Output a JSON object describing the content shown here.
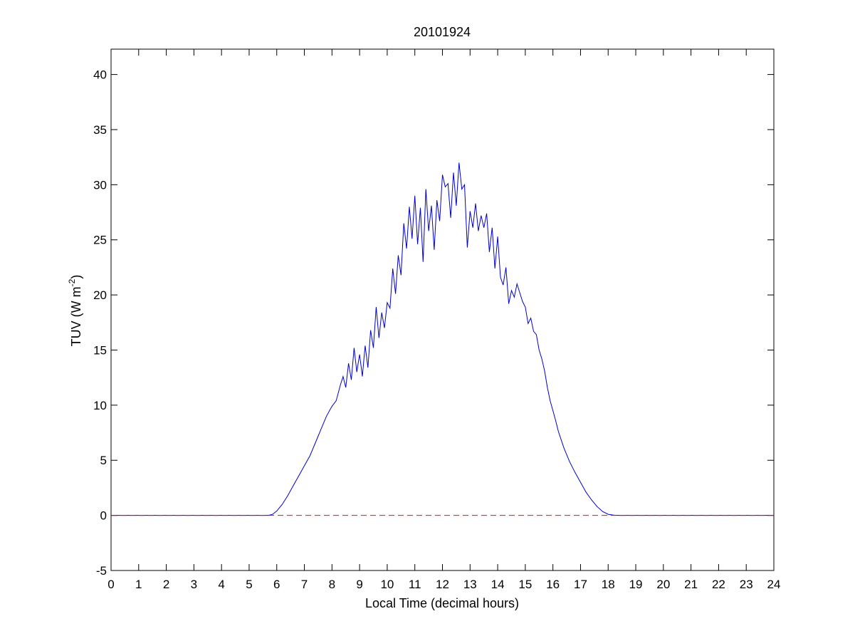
{
  "chart_data": {
    "type": "line",
    "title": "20101924",
    "xlabel": "Local Time (decimal hours)",
    "ylabel": "TUV (W m",
    "ylabel_sup": "-2",
    "ylabel_end": ")",
    "xlim": [
      0,
      24
    ],
    "ylim": [
      -5,
      42.3
    ],
    "xticks": [
      "0",
      "1",
      "2",
      "3",
      "4",
      "5",
      "6",
      "7",
      "8",
      "9",
      "10",
      "11",
      "12",
      "13",
      "14",
      "15",
      "16",
      "17",
      "18",
      "19",
      "20",
      "21",
      "22",
      "23",
      "24"
    ],
    "yticks": [
      "-5",
      "0",
      "5",
      "10",
      "15",
      "20",
      "25",
      "30",
      "35",
      "40"
    ],
    "grid": false,
    "series": [
      {
        "color": "#0000cc",
        "style": "solid",
        "x": [
          0,
          5.7,
          5.85,
          6.0,
          6.2,
          6.4,
          6.6,
          6.8,
          7.0,
          7.2,
          7.4,
          7.6,
          7.8,
          8.0,
          8.15,
          8.3,
          8.4,
          8.5,
          8.6,
          8.7,
          8.8,
          8.9,
          9.0,
          9.1,
          9.2,
          9.3,
          9.4,
          9.5,
          9.6,
          9.7,
          9.8,
          9.9,
          10.0,
          10.1,
          10.2,
          10.3,
          10.4,
          10.5,
          10.6,
          10.7,
          10.8,
          10.9,
          11.0,
          11.1,
          11.2,
          11.3,
          11.4,
          11.5,
          11.6,
          11.7,
          11.8,
          11.9,
          12.0,
          12.1,
          12.2,
          12.3,
          12.4,
          12.5,
          12.6,
          12.7,
          12.8,
          12.9,
          13.0,
          13.1,
          13.2,
          13.3,
          13.4,
          13.5,
          13.6,
          13.7,
          13.8,
          13.9,
          14.0,
          14.1,
          14.2,
          14.3,
          14.4,
          14.5,
          14.6,
          14.7,
          14.8,
          14.9,
          15.0,
          15.1,
          15.2,
          15.3,
          15.4,
          15.5,
          15.6,
          15.7,
          15.8,
          15.9,
          16.0,
          16.1,
          16.2,
          16.4,
          16.6,
          16.8,
          17.0,
          17.2,
          17.4,
          17.6,
          17.8,
          18.0,
          18.2,
          18.35,
          24
        ],
        "y": [
          0,
          0,
          0.1,
          0.4,
          1.0,
          1.8,
          2.7,
          3.6,
          4.5,
          5.4,
          6.6,
          7.8,
          9.0,
          9.9,
          10.4,
          11.8,
          12.6,
          11.6,
          13.8,
          12.3,
          15.2,
          13.0,
          14.6,
          12.6,
          15.4,
          13.4,
          16.8,
          15.2,
          18.9,
          16.1,
          18.4,
          17.0,
          19.3,
          18.8,
          22.4,
          20.1,
          23.6,
          21.8,
          26.5,
          24.2,
          28.0,
          25.1,
          29.0,
          24.6,
          27.9,
          23.0,
          29.6,
          25.8,
          28.1,
          24.1,
          28.6,
          26.7,
          30.9,
          29.8,
          30.1,
          27.0,
          31.1,
          28.1,
          32.0,
          29.6,
          30.0,
          24.3,
          27.6,
          26.1,
          28.3,
          25.8,
          27.2,
          26.1,
          27.4,
          23.9,
          26.1,
          22.4,
          25.3,
          21.6,
          20.9,
          22.5,
          19.2,
          20.4,
          19.8,
          21.0,
          20.2,
          19.4,
          18.9,
          17.4,
          17.9,
          16.7,
          16.4,
          15.0,
          14.2,
          13.1,
          11.6,
          10.4,
          9.5,
          8.6,
          7.6,
          6.1,
          4.9,
          3.9,
          3.0,
          2.1,
          1.4,
          0.8,
          0.35,
          0.1,
          0.02,
          0,
          0
        ]
      },
      {
        "color": "#ff0000",
        "style": "dashed",
        "x": [
          0,
          24
        ],
        "y": [
          0,
          0
        ]
      }
    ]
  }
}
